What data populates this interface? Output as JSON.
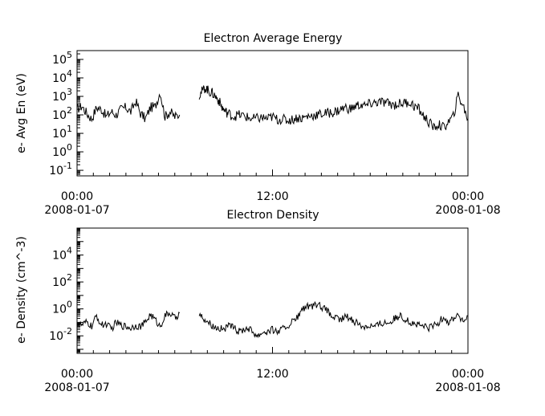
{
  "chart_data": [
    {
      "type": "line",
      "title": "Electron Average Energy",
      "ylabel": "e- Avg En (eV)",
      "y_scale": "log",
      "ylim": [
        0.05,
        300000
      ],
      "xlim_hours": [
        0,
        24
      ],
      "x_ticks": [
        {
          "hour": 0,
          "time": "00:00",
          "date": "2008-01-07"
        },
        {
          "hour": 12,
          "time": "12:00",
          "date": ""
        },
        {
          "hour": 24,
          "time": "00:00",
          "date": "2008-01-08"
        }
      ],
      "y_ticks": [
        {
          "value": 0.1,
          "base": "10",
          "exp": "-1"
        },
        {
          "value": 1,
          "base": "10",
          "exp": "0"
        },
        {
          "value": 10,
          "base": "10",
          "exp": "1"
        },
        {
          "value": 100,
          "base": "10",
          "exp": "2"
        },
        {
          "value": 1000,
          "base": "10",
          "exp": "3"
        },
        {
          "value": 10000,
          "base": "10",
          "exp": "4"
        },
        {
          "value": 100000,
          "base": "10",
          "exp": "5"
        }
      ],
      "series_segments": [
        {
          "x": [
            0.0,
            0.3,
            0.6,
            0.9,
            1.2,
            1.5,
            1.8,
            2.1,
            2.4,
            2.7,
            3.0,
            3.3,
            3.6,
            3.9,
            4.2,
            4.5,
            4.8,
            5.1,
            5.4,
            5.7,
            6.0,
            6.3
          ],
          "y": [
            200,
            300,
            120,
            60,
            250,
            200,
            80,
            150,
            100,
            200,
            250,
            150,
            550,
            120,
            60,
            250,
            280,
            1800,
            80,
            150,
            80,
            100
          ]
        },
        {
          "x": [
            7.5,
            7.7,
            7.9,
            8.1,
            8.3,
            8.5,
            8.7,
            8.9,
            9.1,
            9.3,
            9.6,
            9.9,
            10.2,
            10.5,
            10.8,
            11.1,
            11.4,
            11.7,
            12.0,
            12.3,
            12.6,
            12.9,
            13.2,
            13.5,
            13.8,
            14.1,
            14.4,
            14.7,
            15.0,
            15.3,
            15.6,
            15.9,
            16.2,
            16.5,
            16.8,
            17.1,
            17.4,
            17.7,
            18.0,
            18.3,
            18.6,
            18.9,
            19.2,
            19.5,
            19.8,
            20.1,
            20.4,
            20.7,
            21.0,
            21.3,
            21.6,
            21.9,
            22.2,
            22.5,
            22.8,
            23.1,
            23.4,
            23.7,
            24.0
          ],
          "y": [
            1200,
            2000,
            3000,
            1800,
            1500,
            1000,
            600,
            250,
            150,
            120,
            80,
            100,
            90,
            70,
            60,
            65,
            70,
            60,
            80,
            55,
            60,
            50,
            55,
            70,
            65,
            80,
            90,
            100,
            110,
            120,
            130,
            150,
            200,
            250,
            200,
            300,
            350,
            300,
            400,
            450,
            500,
            450,
            400,
            350,
            400,
            450,
            500,
            300,
            200,
            80,
            40,
            20,
            30,
            20,
            40,
            80,
            1200,
            300,
            60
          ]
        }
      ]
    },
    {
      "type": "line",
      "title": "Electron Density",
      "ylabel": "e- Density (cm^-3)",
      "y_scale": "log",
      "ylim": [
        0.0005,
        1000000
      ],
      "xlim_hours": [
        0,
        24
      ],
      "x_ticks": [
        {
          "hour": 0,
          "time": "00:00",
          "date": "2008-01-07"
        },
        {
          "hour": 12,
          "time": "12:00",
          "date": ""
        },
        {
          "hour": 24,
          "time": "00:00",
          "date": "2008-01-08"
        }
      ],
      "y_ticks": [
        {
          "value": 0.01,
          "base": "10",
          "exp": "-2"
        },
        {
          "value": 1,
          "base": "10",
          "exp": "0"
        },
        {
          "value": 100,
          "base": "10",
          "exp": "2"
        },
        {
          "value": 10000,
          "base": "10",
          "exp": "4"
        }
      ],
      "series_segments": [
        {
          "x": [
            0.0,
            0.3,
            0.6,
            0.9,
            1.2,
            1.5,
            1.8,
            2.1,
            2.4,
            2.7,
            3.0,
            3.3,
            3.6,
            3.9,
            4.2,
            4.5,
            4.8,
            5.1,
            5.4,
            5.7,
            6.0,
            6.3
          ],
          "y": [
            0.08,
            0.06,
            0.1,
            0.05,
            0.3,
            0.06,
            0.08,
            0.03,
            0.1,
            0.06,
            0.05,
            0.04,
            0.06,
            0.05,
            0.1,
            0.4,
            0.15,
            0.05,
            0.3,
            0.5,
            0.2,
            0.5
          ]
        },
        {
          "x": [
            7.5,
            7.8,
            8.1,
            8.4,
            8.7,
            9.0,
            9.3,
            9.6,
            9.9,
            10.2,
            10.5,
            10.8,
            11.1,
            11.4,
            11.7,
            12.0,
            12.3,
            12.6,
            12.9,
            13.2,
            13.5,
            13.8,
            14.1,
            14.4,
            14.7,
            15.0,
            15.3,
            15.6,
            15.9,
            16.2,
            16.5,
            16.8,
            17.1,
            17.4,
            17.7,
            18.0,
            18.3,
            18.6,
            18.9,
            19.2,
            19.5,
            19.8,
            20.1,
            20.4,
            20.7,
            21.0,
            21.3,
            21.6,
            21.9,
            22.2,
            22.5,
            22.8,
            23.1,
            23.4,
            23.7,
            24.0
          ],
          "y": [
            0.4,
            0.2,
            0.1,
            0.05,
            0.04,
            0.03,
            0.05,
            0.04,
            0.02,
            0.03,
            0.04,
            0.02,
            0.01,
            0.02,
            0.02,
            0.03,
            0.02,
            0.03,
            0.05,
            0.1,
            0.2,
            0.8,
            1.5,
            1.2,
            2.0,
            1.5,
            0.8,
            0.3,
            0.2,
            0.15,
            0.3,
            0.2,
            0.1,
            0.06,
            0.05,
            0.06,
            0.05,
            0.08,
            0.1,
            0.1,
            0.2,
            0.3,
            0.2,
            0.1,
            0.08,
            0.06,
            0.05,
            0.04,
            0.06,
            0.08,
            0.3,
            0.1,
            0.2,
            0.4,
            0.1,
            0.3
          ]
        }
      ]
    }
  ]
}
